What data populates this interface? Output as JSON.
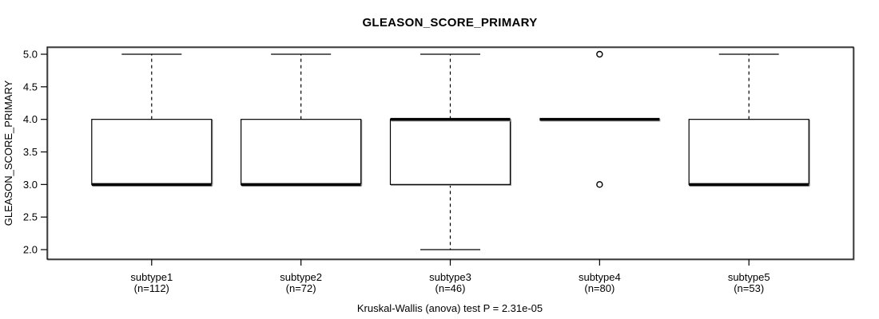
{
  "chart_data": {
    "type": "boxplot",
    "title": "GLEASON_SCORE_PRIMARY",
    "ylabel": "GLEASON_SCORE_PRIMARY",
    "xlabel": "",
    "ylim": [
      2.0,
      5.0
    ],
    "yticks": [
      {
        "value": 5.0,
        "label": "5.0"
      },
      {
        "value": 4.5,
        "label": "4.5"
      },
      {
        "value": 4.0,
        "label": "4.0"
      },
      {
        "value": 3.5,
        "label": "3.5"
      },
      {
        "value": 3.0,
        "label": "3.0"
      },
      {
        "value": 2.5,
        "label": "2.5"
      },
      {
        "value": 2.0,
        "label": "2.0"
      }
    ],
    "grid": false,
    "legend": null,
    "groups": [
      {
        "label": "subtype1",
        "n": 112,
        "n_label": "(n=112)",
        "q1": 3,
        "median": 3,
        "q3": 4,
        "whisker_low": 3,
        "whisker_high": 5,
        "outliers": []
      },
      {
        "label": "subtype2",
        "n": 72,
        "n_label": "(n=72)",
        "q1": 3,
        "median": 3,
        "q3": 4,
        "whisker_low": 3,
        "whisker_high": 5,
        "outliers": []
      },
      {
        "label": "subtype3",
        "n": 46,
        "n_label": "(n=46)",
        "q1": 3,
        "median": 4,
        "q3": 4,
        "whisker_low": 2,
        "whisker_high": 5,
        "outliers": []
      },
      {
        "label": "subtype4",
        "n": 80,
        "n_label": "(n=80)",
        "q1": 4,
        "median": 4,
        "q3": 4,
        "whisker_low": 4,
        "whisker_high": 4,
        "outliers": [
          5,
          3
        ]
      },
      {
        "label": "subtype5",
        "n": 53,
        "n_label": "(n=53)",
        "q1": 3,
        "median": 3,
        "q3": 4,
        "whisker_low": 3,
        "whisker_high": 5,
        "outliers": []
      }
    ],
    "stats_caption": "Kruskal-Wallis (anova) test P = 2.31e-05"
  },
  "colors": {
    "line": "#000000",
    "background": "#ffffff",
    "box_fill": "#ffffff",
    "shadow": "#9c9c9c"
  }
}
